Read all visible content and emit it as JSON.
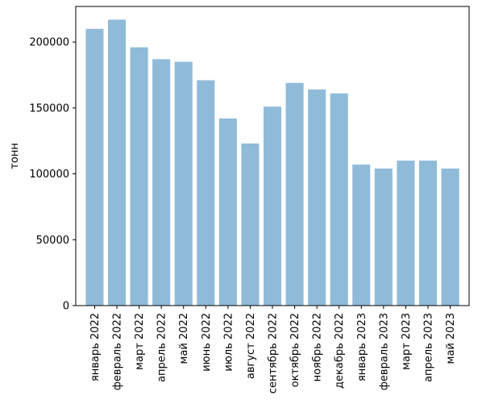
{
  "chart_data": {
    "type": "bar",
    "categories": [
      "январь 2022",
      "февраль 2022",
      "март 2022",
      "апрель 2022",
      "май 2022",
      "июнь 2022",
      "июль 2022",
      "август 2022",
      "сентябрь 2022",
      "октябрь 2022",
      "ноябрь 2022",
      "декабрь 2022",
      "январь 2023",
      "февраль 2023",
      "март 2023",
      "апрель 2023",
      "май 2023"
    ],
    "values": [
      210000,
      217000,
      196000,
      187000,
      185000,
      171000,
      142000,
      123000,
      151000,
      169000,
      164000,
      161000,
      107000,
      104000,
      110000,
      110000,
      104000
    ],
    "title": "",
    "xlabel": "",
    "ylabel": "тонн",
    "ylim": [
      0,
      227000
    ],
    "yticks": [
      0,
      50000,
      100000,
      150000,
      200000
    ],
    "ytick_labels": [
      "0",
      "50000",
      "100000",
      "150000",
      "200000"
    ],
    "bar_color": "#8fbbd9",
    "grid": false,
    "legend": "none"
  }
}
